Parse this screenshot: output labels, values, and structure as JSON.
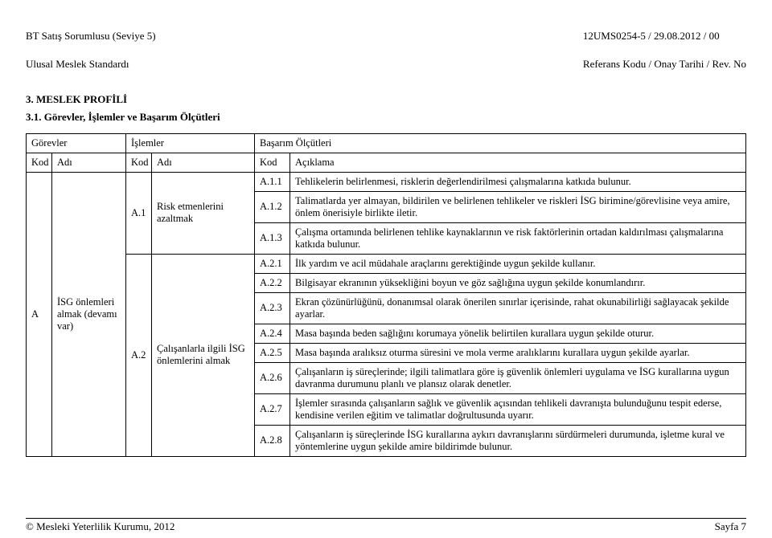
{
  "header": {
    "left_line1": "BT Satış Sorumlusu (Seviye 5)",
    "left_line2": "Ulusal Meslek Standardı",
    "right_line1": "12UMS0254-5 / 29.08.2012   / 00",
    "right_line2": "Referans Kodu / Onay Tarihi / Rev. No"
  },
  "section_title": "3. MESLEK PROFİLİ",
  "subsection_title": "3.1. Görevler, İşlemler ve Başarım Ölçütleri",
  "table": {
    "group_headers": {
      "gorevler": "Görevler",
      "islemler": "İşlemler",
      "basarim": "Başarım Ölçütleri"
    },
    "col_headers": {
      "kod": "Kod",
      "adi": "Adı",
      "aciklama": "Açıklama"
    },
    "gorev": {
      "kod": "A",
      "adi": "İSG önlemleri almak (devamı var)"
    },
    "islemler": [
      {
        "kod": "A.1",
        "adi": "Risk etmenlerini azaltmak"
      },
      {
        "kod": "A.2",
        "adi": "Çalışanlarla ilgili İSG önlemlerini almak"
      }
    ],
    "rows": [
      {
        "kod": "A.1.1",
        "aciklama": "Tehlikelerin belirlenmesi, risklerin değerlendirilmesi çalışmalarına katkıda bulunur."
      },
      {
        "kod": "A.1.2",
        "aciklama": "Talimatlarda yer almayan, bildirilen ve belirlenen tehlikeler ve riskleri İSG birimine/görevlisine veya amire, önlem önerisiyle birlikte iletir."
      },
      {
        "kod": "A.1.3",
        "aciklama": "Çalışma ortamında belirlenen tehlike kaynaklarının ve risk faktörlerinin ortadan kaldırılması çalışmalarına katkıda bulunur."
      },
      {
        "kod": "A.2.1",
        "aciklama": "İlk yardım ve acil müdahale araçlarını gerektiğinde uygun şekilde kullanır."
      },
      {
        "kod": "A.2.2",
        "aciklama": "Bilgisayar ekranının yüksekliğini boyun ve göz sağlığına uygun şekilde konumlandırır."
      },
      {
        "kod": "A.2.3",
        "aciklama": "Ekran çözünürlüğünü, donanımsal olarak önerilen sınırlar içerisinde, rahat okunabilirliği sağlayacak şekilde ayarlar."
      },
      {
        "kod": "A.2.4",
        "aciklama": "Masa başında beden sağlığını korumaya yönelik belirtilen kurallara uygun şekilde oturur."
      },
      {
        "kod": "A.2.5",
        "aciklama": "Masa başında aralıksız oturma süresini ve mola verme aralıklarını kurallara uygun şekilde ayarlar."
      },
      {
        "kod": "A.2.6",
        "aciklama": "Çalışanların iş süreçlerinde; ilgili talimatlara göre iş güvenlik önlemleri uygulama ve İSG kurallarına uygun davranma durumunu planlı ve plansız olarak denetler."
      },
      {
        "kod": "A.2.7",
        "aciklama": "İşlemler sırasında çalışanların sağlık ve güvenlik açısından tehlikeli davranışta bulunduğunu tespit ederse, kendisine verilen eğitim ve talimatlar doğrultusunda uyarır."
      },
      {
        "kod": "A.2.8",
        "aciklama": "Çalışanların iş süreçlerinde İSG kurallarına aykırı davranışlarını sürdürmeleri durumunda, işletme kural ve yöntemlerine uygun şekilde amire bildirimde bulunur."
      }
    ]
  },
  "footer": {
    "left": "© Mesleki Yeterlilik Kurumu, 2012",
    "right": "Sayfa 7"
  }
}
